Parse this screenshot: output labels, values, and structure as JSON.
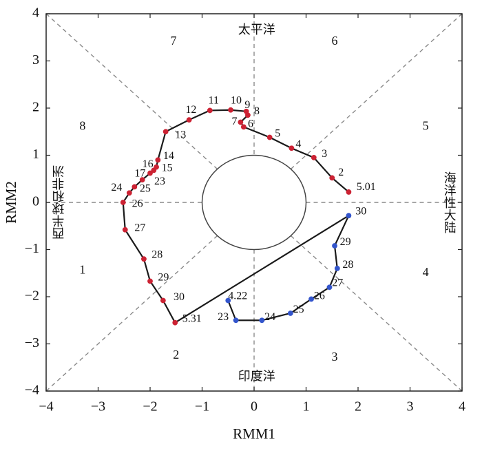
{
  "chart_data": {
    "type": "line",
    "xlabel": "RMM1",
    "ylabel": "RMM2",
    "xlim": [
      -4,
      4
    ],
    "ylim": [
      -4,
      4
    ],
    "xticks": [
      -4,
      -3,
      -2,
      -1,
      0,
      1,
      2,
      3,
      4
    ],
    "yticks": [
      -4,
      -3,
      -2,
      -1,
      0,
      1,
      2,
      3,
      4
    ],
    "grid": false,
    "amplitude_circle_radius": 1,
    "phase_labels": [
      {
        "text": "1",
        "x": -3.3,
        "y": -1.45
      },
      {
        "text": "2",
        "x": -1.5,
        "y": -3.25
      },
      {
        "text": "3",
        "x": 1.55,
        "y": -3.3
      },
      {
        "text": "4",
        "x": 3.3,
        "y": -1.5
      },
      {
        "text": "5",
        "x": 3.3,
        "y": 1.6
      },
      {
        "text": "6",
        "x": 1.55,
        "y": 3.4
      },
      {
        "text": "7",
        "x": -1.55,
        "y": 3.4
      },
      {
        "text": "8",
        "x": -3.3,
        "y": 1.6
      }
    ],
    "region_labels": {
      "top": "太平洋",
      "bottom": "印度洋",
      "left": "西半球和非洲",
      "right": "海洋性大陆"
    },
    "series": [
      {
        "color": "#cc2233",
        "points": [
          {
            "label": "5.01",
            "x": 1.82,
            "y": 0.22
          },
          {
            "label": "2",
            "x": 1.5,
            "y": 0.52
          },
          {
            "label": "3",
            "x": 1.15,
            "y": 0.95
          },
          {
            "label": "4",
            "x": 0.72,
            "y": 1.15
          },
          {
            "label": "5",
            "x": 0.3,
            "y": 1.38
          },
          {
            "label": "6",
            "x": -0.2,
            "y": 1.6
          },
          {
            "label": "7",
            "x": -0.26,
            "y": 1.7
          },
          {
            "label": "8",
            "x": -0.12,
            "y": 1.85
          },
          {
            "label": "9",
            "x": -0.15,
            "y": 1.93
          },
          {
            "label": "10",
            "x": -0.45,
            "y": 1.96
          },
          {
            "label": "11",
            "x": -0.85,
            "y": 1.95
          },
          {
            "label": "12",
            "x": -1.25,
            "y": 1.75
          },
          {
            "label": "13",
            "x": -1.7,
            "y": 1.5
          },
          {
            "label": "14",
            "x": -1.85,
            "y": 0.9
          },
          {
            "label": "15",
            "x": -1.88,
            "y": 0.75
          },
          {
            "label": "16",
            "x": -1.93,
            "y": 0.68
          },
          {
            "label": "17",
            "x": -2.0,
            "y": 0.62
          },
          {
            "label": "23",
            "x": -2.15,
            "y": 0.48
          },
          {
            "label": "25",
            "x": -2.3,
            "y": 0.33
          },
          {
            "label": "24",
            "x": -2.4,
            "y": 0.2
          },
          {
            "label": "26",
            "x": -2.52,
            "y": 0.0
          },
          {
            "label": "27",
            "x": -2.48,
            "y": -0.58
          },
          {
            "label": "28",
            "x": -2.12,
            "y": -1.2
          },
          {
            "label": "29",
            "x": -2.0,
            "y": -1.67
          },
          {
            "label": "30",
            "x": -1.75,
            "y": -2.08
          },
          {
            "label": "5.31",
            "x": -1.52,
            "y": -2.55
          }
        ]
      },
      {
        "color": "#3355cc",
        "points": [
          {
            "label": "30",
            "x": 1.82,
            "y": -0.28
          },
          {
            "label": "29",
            "x": 1.55,
            "y": -0.92
          },
          {
            "label": "28",
            "x": 1.6,
            "y": -1.4
          },
          {
            "label": "27",
            "x": 1.45,
            "y": -1.8
          },
          {
            "label": "26",
            "x": 1.1,
            "y": -2.05
          },
          {
            "label": "25",
            "x": 0.7,
            "y": -2.35
          },
          {
            "label": "24",
            "x": 0.15,
            "y": -2.5
          },
          {
            "label": "23",
            "x": -0.35,
            "y": -2.5
          },
          {
            "label": "4.22",
            "x": -0.5,
            "y": -2.08
          }
        ]
      }
    ],
    "point_labels": [
      {
        "text": "5.01",
        "x": 1.97,
        "y": 0.32
      },
      {
        "text": "2",
        "x": 1.62,
        "y": 0.62
      },
      {
        "text": "3",
        "x": 1.3,
        "y": 1.02
      },
      {
        "text": "4",
        "x": 0.8,
        "y": 1.22
      },
      {
        "text": "5",
        "x": 0.4,
        "y": 1.45
      },
      {
        "text": "6",
        "x": -0.12,
        "y": 1.65
      },
      {
        "text": "7",
        "x": -0.43,
        "y": 1.7
      },
      {
        "text": "8",
        "x": 0.0,
        "y": 1.92
      },
      {
        "text": "9",
        "x": -0.18,
        "y": 2.05
      },
      {
        "text": "10",
        "x": -0.45,
        "y": 2.15
      },
      {
        "text": "11",
        "x": -0.88,
        "y": 2.15
      },
      {
        "text": "12",
        "x": -1.32,
        "y": 1.95
      },
      {
        "text": "13",
        "x": -1.52,
        "y": 1.42
      },
      {
        "text": "16",
        "x": -2.15,
        "y": 0.8
      },
      {
        "text": "14",
        "x": -1.75,
        "y": 0.97
      },
      {
        "text": "15",
        "x": -1.78,
        "y": 0.72
      },
      {
        "text": "17",
        "x": -2.3,
        "y": 0.6
      },
      {
        "text": "23",
        "x": -1.92,
        "y": 0.43
      },
      {
        "text": "24",
        "x": -2.75,
        "y": 0.3
      },
      {
        "text": "25",
        "x": -2.2,
        "y": 0.28
      },
      {
        "text": "26",
        "x": -2.35,
        "y": -0.04
      },
      {
        "text": "27",
        "x": -2.3,
        "y": -0.55
      },
      {
        "text": "28",
        "x": -1.97,
        "y": -1.12
      },
      {
        "text": "29",
        "x": -1.85,
        "y": -1.6
      },
      {
        "text": "30",
        "x": -1.55,
        "y": -2.02
      },
      {
        "text": "5.31",
        "x": -1.38,
        "y": -2.48
      },
      {
        "text": "30",
        "x": 1.95,
        "y": -0.2
      },
      {
        "text": "29",
        "x": 1.65,
        "y": -0.85
      },
      {
        "text": "28",
        "x": 1.7,
        "y": -1.33
      },
      {
        "text": "27",
        "x": 1.5,
        "y": -1.72
      },
      {
        "text": "26",
        "x": 1.15,
        "y": -2.0
      },
      {
        "text": "25",
        "x": 0.75,
        "y": -2.28
      },
      {
        "text": "24",
        "x": 0.2,
        "y": -2.44
      },
      {
        "text": "23",
        "x": -0.7,
        "y": -2.44
      },
      {
        "text": "4.22",
        "x": -0.5,
        "y": -2.0
      }
    ]
  }
}
